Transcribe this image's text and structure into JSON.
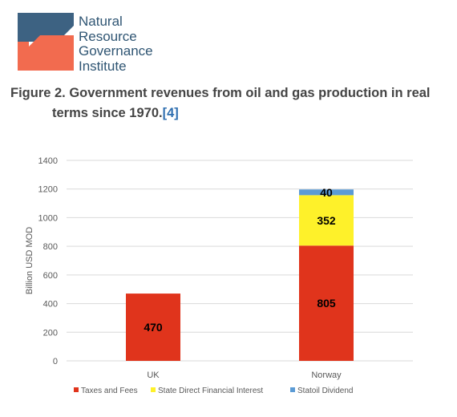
{
  "logo": {
    "lines": [
      "Natural",
      "Resource",
      "Governance",
      "Institute"
    ],
    "colors": {
      "primary": "#3d6282",
      "accent": "#f26b4f",
      "text": "#2f5573"
    }
  },
  "figure": {
    "title_line1": "Figure 2. Government revenues from oil and gas production in real",
    "title_line2": "terms since 1970.",
    "reference": "[4]"
  },
  "chart_data": {
    "type": "bar",
    "stacked": true,
    "categories": [
      "UK",
      "Norway"
    ],
    "series": [
      {
        "name": "Taxes and Fees",
        "values": [
          470,
          805
        ],
        "color": "#e0341c",
        "labels": [
          "470",
          "805"
        ]
      },
      {
        "name": "State Direct Financial Interest",
        "values": [
          0,
          352
        ],
        "color": "#fef12a",
        "labels": [
          "",
          "352"
        ]
      },
      {
        "name": "Statoil Dividend",
        "values": [
          0,
          40
        ],
        "color": "#5b9bd5",
        "labels": [
          "",
          "40"
        ]
      }
    ],
    "ylabel": "Billion USD MOD",
    "ylim": [
      0,
      1400
    ],
    "yticks": [
      0,
      200,
      400,
      600,
      800,
      1000,
      1200,
      1400
    ],
    "grid": true,
    "legend": "bottom"
  }
}
